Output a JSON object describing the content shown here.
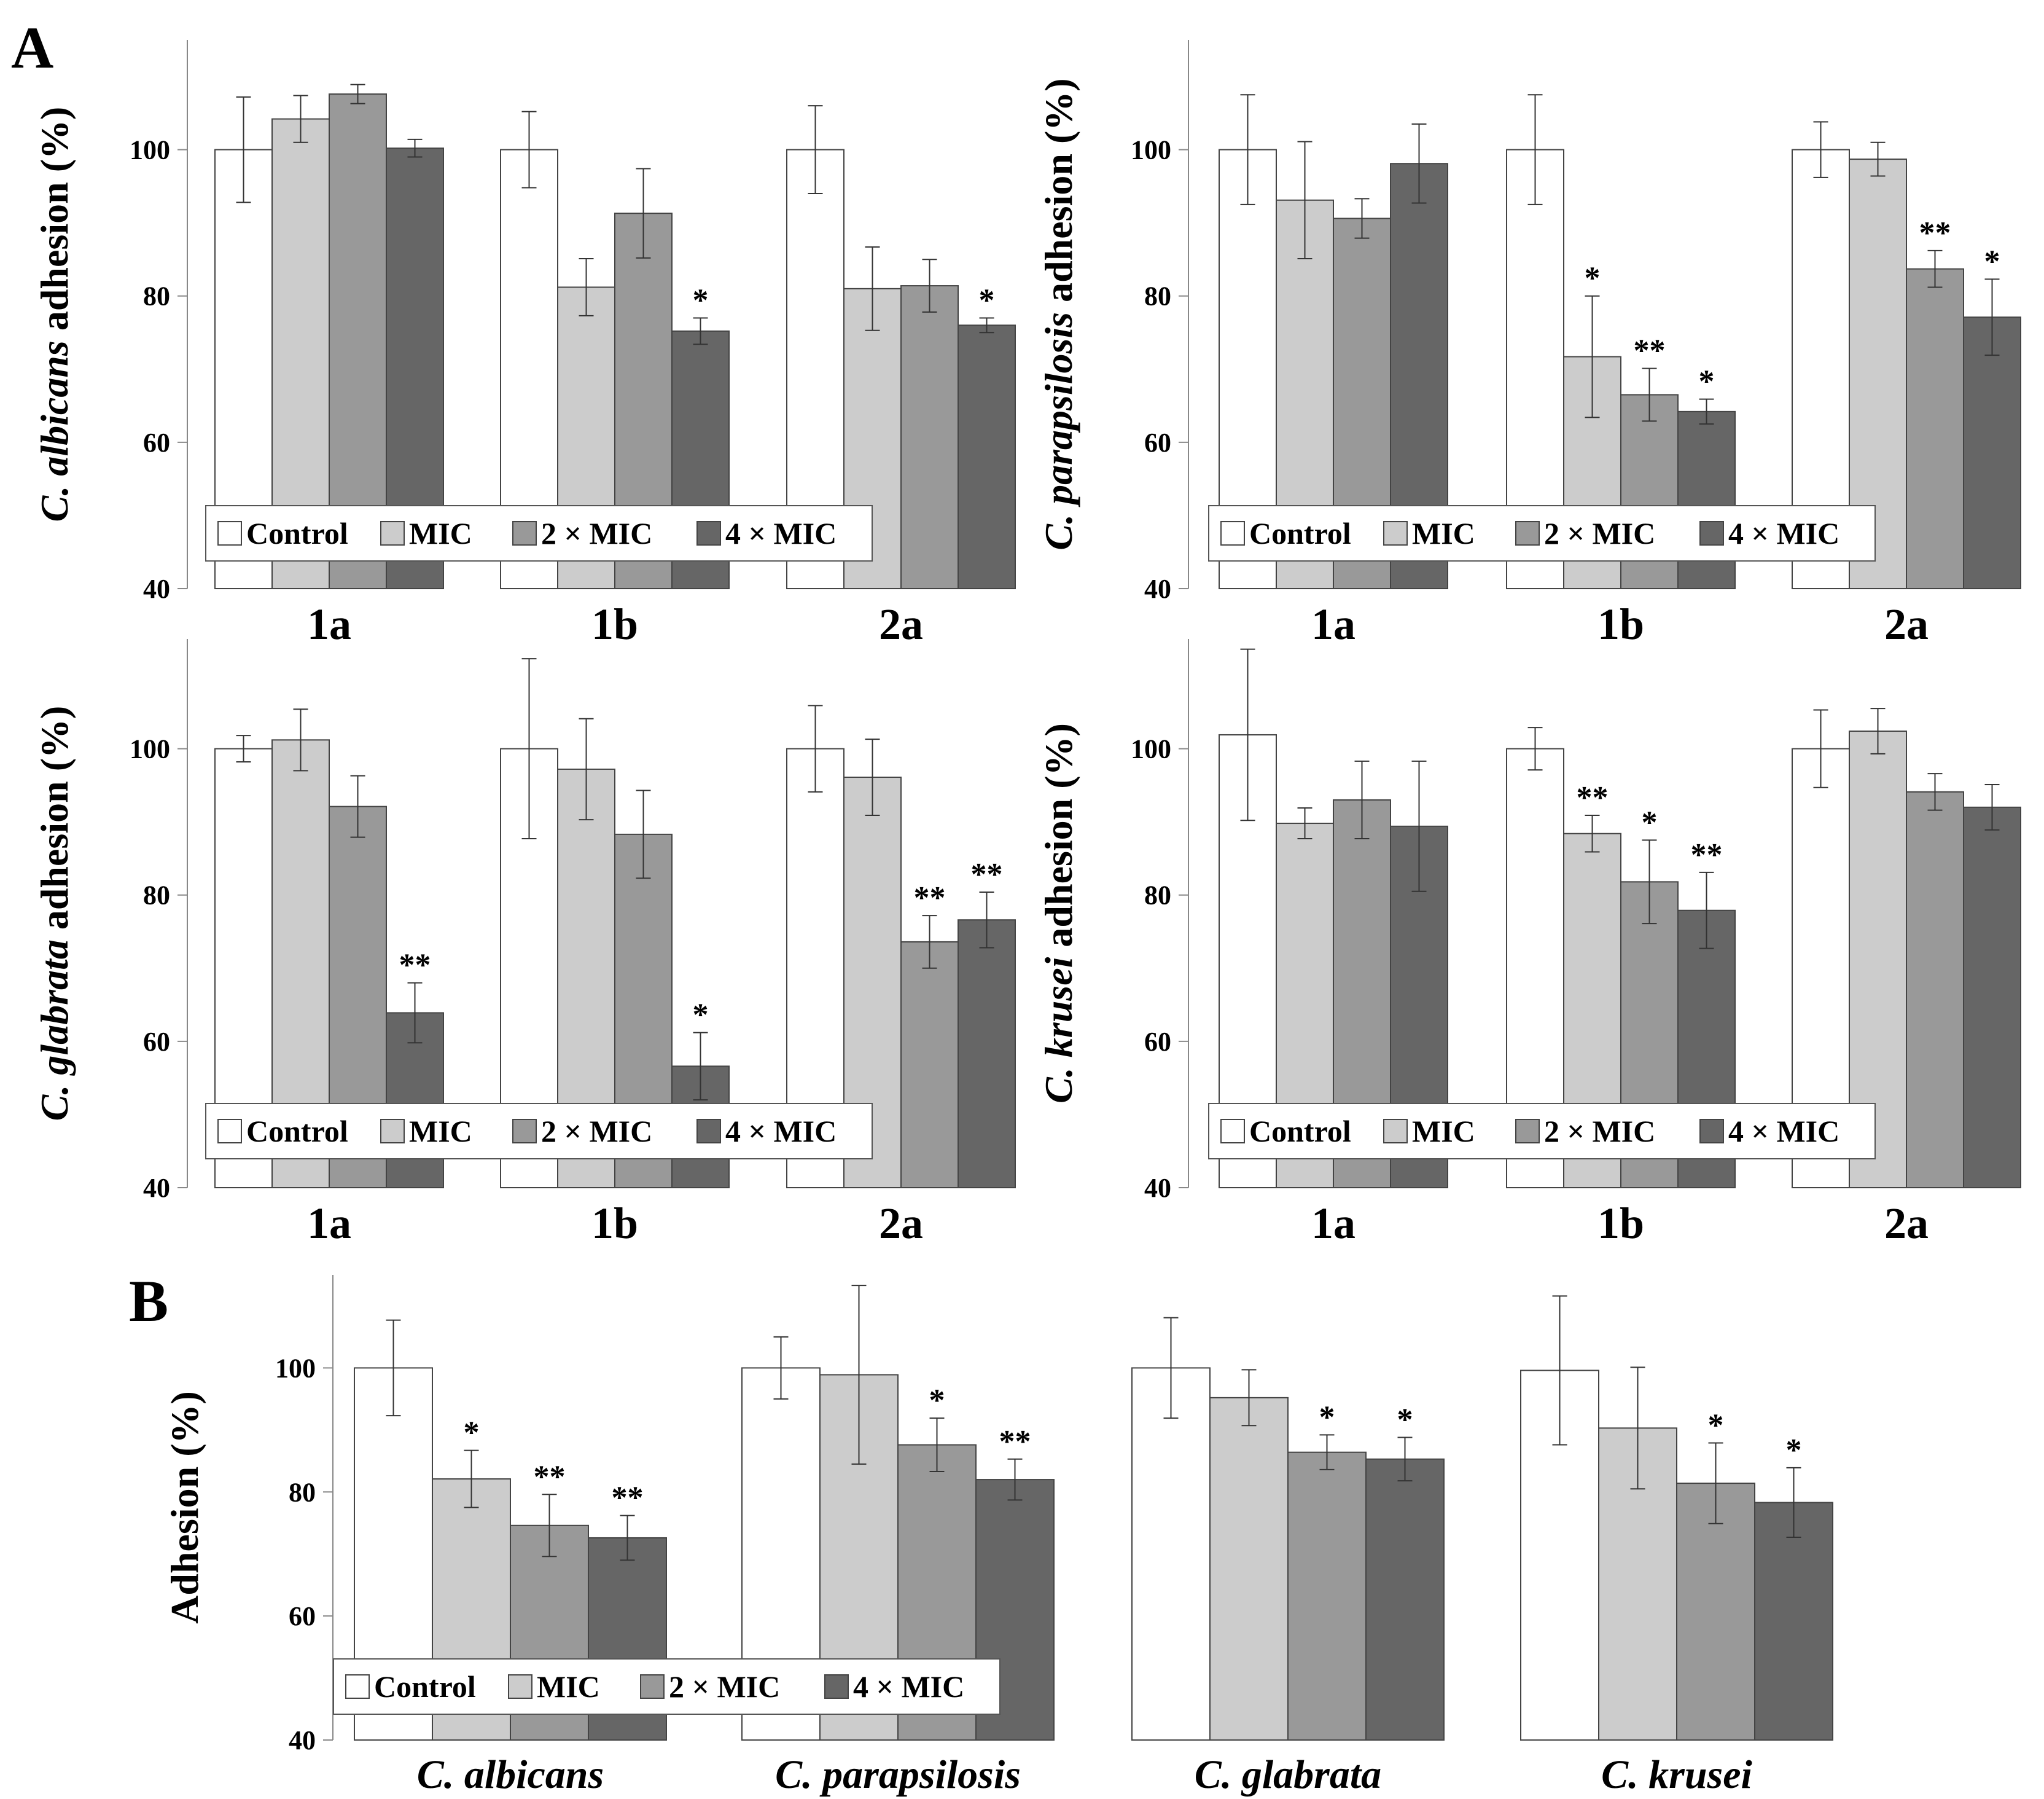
{
  "figure_labels": {
    "A": "A",
    "B": "B"
  },
  "legend": [
    "Control",
    "MIC",
    "2 × MIC",
    "4 × MIC"
  ],
  "colors": [
    "#ffffff",
    "#cccccc",
    "#999999",
    "#666666"
  ],
  "chart_data": [
    {
      "id": "albicans",
      "type": "bar",
      "title": "",
      "ylabel_italic": "C. albicans",
      "ylabel_rest": " adhesion (%)",
      "categories": [
        "1a",
        "1b",
        "2a"
      ],
      "series": [
        {
          "name": "Control",
          "values": [
            100,
            100,
            100
          ],
          "errors": [
            7.2,
            5.2,
            6
          ]
        },
        {
          "name": "MIC",
          "values": [
            104.2,
            81.2,
            81
          ],
          "errors": [
            3.2,
            3.9,
            5.7
          ]
        },
        {
          "name": "2 × MIC",
          "values": [
            107.6,
            91.3,
            81.4
          ],
          "errors": [
            1.3,
            6.1,
            3.6
          ]
        },
        {
          "name": "4 × MIC",
          "values": [
            100.2,
            75.2,
            76
          ],
          "errors": [
            1.2,
            1.8,
            1
          ]
        }
      ],
      "significance": [
        [
          "",
          "",
          ""
        ],
        [
          "",
          "",
          ""
        ],
        [
          "",
          "",
          ""
        ],
        [
          "",
          "*",
          "*"
        ]
      ],
      "ylim": [
        40,
        115
      ],
      "yticks": [
        40,
        60,
        80,
        100
      ],
      "legend_position": "bottom-left"
    },
    {
      "id": "parapsilosis",
      "type": "bar",
      "title": "",
      "ylabel_italic": "C. parapsilosis",
      "ylabel_rest": " adhesion (%)",
      "categories": [
        "1a",
        "1b",
        "2a"
      ],
      "series": [
        {
          "name": "Control",
          "values": [
            100,
            100,
            100
          ],
          "errors": [
            7.5,
            7.5,
            3.8
          ]
        },
        {
          "name": "MIC",
          "values": [
            93.1,
            71.7,
            98.7
          ],
          "errors": [
            8,
            8.3,
            2.3
          ]
        },
        {
          "name": "2 × MIC",
          "values": [
            90.6,
            66.5,
            83.7
          ],
          "errors": [
            2.7,
            3.6,
            2.5
          ]
        },
        {
          "name": "4 × MIC",
          "values": [
            98.1,
            64.2,
            77.1
          ],
          "errors": [
            5.4,
            1.7,
            5.2
          ]
        }
      ],
      "significance": [
        [
          "",
          "",
          ""
        ],
        [
          "",
          "*",
          ""
        ],
        [
          "",
          "**",
          "**"
        ],
        [
          "",
          "*",
          "*"
        ]
      ],
      "ylim": [
        40,
        115
      ],
      "yticks": [
        40,
        60,
        80,
        100
      ],
      "legend_position": "bottom-left"
    },
    {
      "id": "glabrata",
      "type": "bar",
      "title": "",
      "ylabel_italic": "C. glabrata",
      "ylabel_rest": " adhesion (%)",
      "categories": [
        "1a",
        "1b",
        "2a"
      ],
      "series": [
        {
          "name": "Control",
          "values": [
            100,
            100,
            100
          ],
          "errors": [
            1.8,
            12.3,
            5.9
          ]
        },
        {
          "name": "MIC",
          "values": [
            101.2,
            97.2,
            96.1
          ],
          "errors": [
            4.2,
            6.9,
            5.2
          ]
        },
        {
          "name": "2 × MIC",
          "values": [
            92.1,
            88.3,
            73.6
          ],
          "errors": [
            4.2,
            6,
            3.6
          ]
        },
        {
          "name": "4 × MIC",
          "values": [
            63.9,
            56.6,
            76.6
          ],
          "errors": [
            4.1,
            4.6,
            3.8
          ]
        }
      ],
      "significance": [
        [
          "",
          "",
          ""
        ],
        [
          "",
          "",
          ""
        ],
        [
          "",
          "",
          "**"
        ],
        [
          "**",
          "*",
          "**"
        ]
      ],
      "ylim": [
        40,
        115
      ],
      "yticks": [
        40,
        60,
        80,
        100
      ],
      "legend_position": "bottom-left"
    },
    {
      "id": "krusei",
      "type": "bar",
      "title": "",
      "ylabel_italic": "C. krusei",
      "ylabel_rest": " adhesion (%)",
      "categories": [
        "1a",
        "1b",
        "2a"
      ],
      "series": [
        {
          "name": "Control",
          "values": [
            101.9,
            100,
            100
          ],
          "errors": [
            11.7,
            2.9,
            5.3
          ]
        },
        {
          "name": "MIC",
          "values": [
            89.8,
            88.4,
            102.4
          ],
          "errors": [
            2.1,
            2.5,
            3.1
          ]
        },
        {
          "name": "2 × MIC",
          "values": [
            93,
            81.8,
            94.1
          ],
          "errors": [
            5.3,
            5.7,
            2.5
          ]
        },
        {
          "name": "4 × MIC",
          "values": [
            89.4,
            77.9,
            92
          ],
          "errors": [
            8.9,
            5.2,
            3.1
          ]
        }
      ],
      "significance": [
        [
          "",
          "",
          ""
        ],
        [
          "",
          "**",
          ""
        ],
        [
          "",
          "*",
          ""
        ],
        [
          "",
          "**",
          ""
        ]
      ],
      "ylim": [
        40,
        115
      ],
      "yticks": [
        40,
        60,
        80,
        100
      ],
      "legend_position": "bottom-left"
    },
    {
      "id": "combined",
      "type": "bar",
      "title": "",
      "ylabel": "Adhesion (%)",
      "categories": [
        "C. albicans",
        "C. parapsilosis",
        "C. glabrata",
        "C. krusei"
      ],
      "series": [
        {
          "name": "Control",
          "values": [
            100,
            100,
            100,
            99.6
          ],
          "errors": [
            7.7,
            5,
            8.1,
            12
          ]
        },
        {
          "name": "MIC",
          "values": [
            82.1,
            98.9,
            95.2,
            90.3
          ],
          "errors": [
            4.6,
            14.4,
            4.5,
            9.8
          ]
        },
        {
          "name": "2 × MIC",
          "values": [
            74.6,
            87.6,
            86.4,
            81.4
          ],
          "errors": [
            5,
            4.3,
            2.8,
            6.5
          ]
        },
        {
          "name": "4 × MIC",
          "values": [
            72.6,
            82,
            85.3,
            78.3
          ],
          "errors": [
            3.6,
            3.3,
            3.5,
            5.6
          ]
        }
      ],
      "significance": [
        [
          "",
          "",
          "",
          ""
        ],
        [
          "*",
          "",
          "",
          ""
        ],
        [
          "**",
          "*",
          "*",
          "*"
        ],
        [
          "**",
          "**",
          "*",
          "*"
        ]
      ],
      "ylim": [
        40,
        115
      ],
      "yticks": [
        40,
        60,
        80,
        100
      ],
      "legend_position": "bottom-left"
    }
  ]
}
